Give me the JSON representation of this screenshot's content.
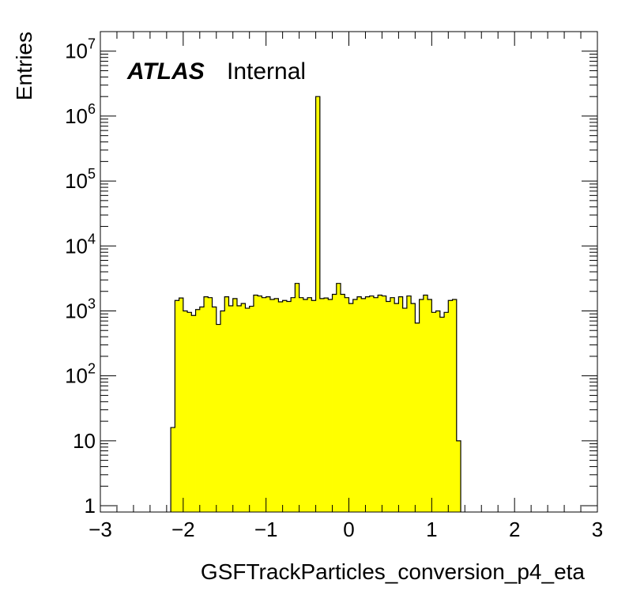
{
  "chart_data": {
    "type": "bar",
    "style": "histogram-step",
    "xlabel": "GSFTrackParticles_conversion_p4_eta",
    "ylabel": "Entries",
    "annotation": {
      "bold": "ATLAS",
      "normal": "Internal"
    },
    "xlim": [
      -3,
      3
    ],
    "ylim": [
      0.8,
      20000000
    ],
    "y_scale": "log",
    "fill_color": "#ffff00",
    "line_color": "#000000",
    "x_ticks": [
      {
        "value": -3,
        "label": "−3"
      },
      {
        "value": -2,
        "label": "−2"
      },
      {
        "value": -1,
        "label": "−1"
      },
      {
        "value": 0,
        "label": "0"
      },
      {
        "value": 1,
        "label": "1"
      },
      {
        "value": 2,
        "label": "2"
      },
      {
        "value": 3,
        "label": "3"
      }
    ],
    "y_ticks": [
      {
        "value": 1,
        "base": "1",
        "exp": ""
      },
      {
        "value": 10,
        "base": "10",
        "exp": ""
      },
      {
        "value": 100,
        "base": "10",
        "exp": "2"
      },
      {
        "value": 1000,
        "base": "10",
        "exp": "3"
      },
      {
        "value": 10000,
        "base": "10",
        "exp": "4"
      },
      {
        "value": 100000,
        "base": "10",
        "exp": "5"
      },
      {
        "value": 1000000,
        "base": "10",
        "exp": "6"
      },
      {
        "value": 10000000,
        "base": "10",
        "exp": "7"
      }
    ],
    "bin_start": -3,
    "bin_width": 0.05,
    "values": [
      0,
      0,
      0,
      0,
      0,
      0,
      0,
      0,
      0,
      0,
      0,
      0,
      0,
      0,
      0,
      0,
      0,
      16,
      1450,
      1580,
      1000,
      950,
      850,
      1050,
      1150,
      1650,
      1600,
      1150,
      620,
      1000,
      1650,
      1200,
      1550,
      1200,
      1300,
      1100,
      1180,
      1750,
      1700,
      1600,
      1650,
      1500,
      1550,
      1380,
      1450,
      1400,
      1600,
      2650,
      1600,
      1500,
      1600,
      1450,
      2000000,
      1550,
      1580,
      1500,
      1800,
      2650,
      1800,
      1600,
      1300,
      1500,
      1650,
      1550,
      1650,
      1700,
      1600,
      1750,
      1700,
      1400,
      1600,
      1300,
      1650,
      1100,
      1700,
      1300,
      650,
      1500,
      1750,
      1500,
      950,
      1000,
      800,
      950,
      1450,
      1500,
      10,
      0,
      0,
      0,
      0,
      0,
      0,
      0,
      0,
      0,
      0,
      0,
      0,
      0,
      0,
      0,
      0,
      0
    ]
  }
}
